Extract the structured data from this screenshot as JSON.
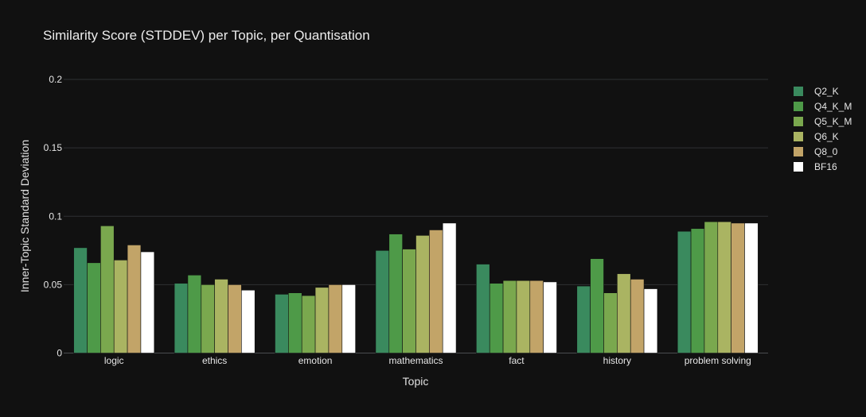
{
  "chart_data": {
    "type": "bar",
    "title": "Similarity Score (STDDEV) per Topic, per Quantisation",
    "xlabel": "Topic",
    "ylabel": "Inner-Topic Standard Deviation",
    "categories": [
      "logic",
      "ethics",
      "emotion",
      "mathematics",
      "fact",
      "history",
      "problem solving"
    ],
    "ylim": [
      0,
      0.2
    ],
    "yticks": [
      0,
      0.05,
      0.1,
      0.15,
      0.2
    ],
    "ytick_labels": [
      "0",
      "0.05",
      "0.1",
      "0.15",
      "0.2"
    ],
    "grid": true,
    "legend_position": "top-right",
    "series": [
      {
        "name": "Q2_K",
        "color": "#3a8a5e",
        "values": [
          0.077,
          0.051,
          0.043,
          0.075,
          0.065,
          0.049,
          0.089
        ]
      },
      {
        "name": "Q4_K_M",
        "color": "#4e9a48",
        "values": [
          0.066,
          0.057,
          0.044,
          0.087,
          0.051,
          0.069,
          0.091
        ]
      },
      {
        "name": "Q5_K_M",
        "color": "#7aa84e",
        "values": [
          0.093,
          0.05,
          0.042,
          0.076,
          0.053,
          0.044,
          0.096
        ]
      },
      {
        "name": "Q6_K",
        "color": "#aab462",
        "values": [
          0.068,
          0.054,
          0.048,
          0.086,
          0.053,
          0.058,
          0.096
        ]
      },
      {
        "name": "Q8_0",
        "color": "#c2a468",
        "values": [
          0.079,
          0.05,
          0.05,
          0.09,
          0.053,
          0.054,
          0.095
        ]
      },
      {
        "name": "BF16",
        "color": "#ffffff",
        "values": [
          0.074,
          0.046,
          0.05,
          0.095,
          0.052,
          0.047,
          0.095
        ]
      }
    ]
  }
}
